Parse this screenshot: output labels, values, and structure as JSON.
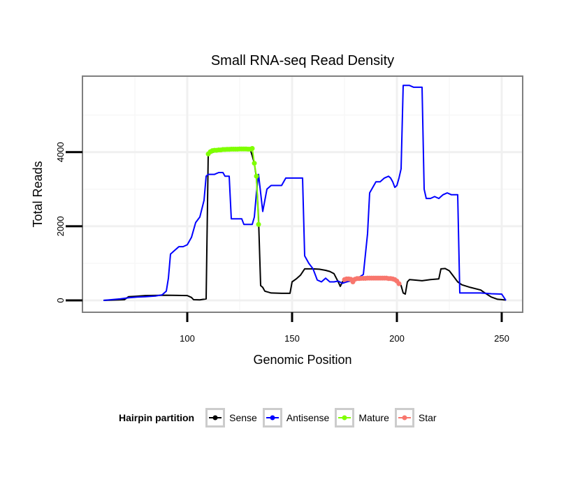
{
  "chart_data": {
    "type": "line",
    "title": "Small RNA-seq Read Density",
    "xlabel": "Genomic Position",
    "ylabel": "Total Reads",
    "xlim": [
      50,
      260
    ],
    "ylim": [
      -320,
      6050
    ],
    "xticks": [
      100,
      150,
      200,
      250
    ],
    "yticks": [
      0,
      2000,
      4000
    ],
    "grid": true,
    "legend": {
      "title": "Hairpin partition",
      "position": "bottom",
      "entries": [
        "Sense",
        "Antisense",
        "Mature",
        "Star"
      ]
    },
    "series": [
      {
        "name": "Sense",
        "color": "#000000",
        "markers": false,
        "points": [
          [
            60,
            0
          ],
          [
            70,
            20
          ],
          [
            72,
            100
          ],
          [
            75,
            110
          ],
          [
            80,
            130
          ],
          [
            90,
            140
          ],
          [
            100,
            130
          ],
          [
            102,
            80
          ],
          [
            103,
            20
          ],
          [
            106,
            15
          ],
          [
            109,
            40
          ],
          [
            110,
            3950
          ],
          [
            115,
            4050
          ],
          [
            120,
            4070
          ],
          [
            125,
            4080
          ],
          [
            128,
            4080
          ],
          [
            130,
            4080
          ],
          [
            131,
            3900
          ],
          [
            132,
            3700
          ],
          [
            133,
            3300
          ],
          [
            134,
            2200
          ],
          [
            135,
            400
          ],
          [
            136,
            350
          ],
          [
            137,
            250
          ],
          [
            140,
            200
          ],
          [
            145,
            190
          ],
          [
            149,
            190
          ],
          [
            150,
            500
          ],
          [
            152,
            580
          ],
          [
            154,
            680
          ],
          [
            156,
            850
          ],
          [
            160,
            850
          ],
          [
            163,
            840
          ],
          [
            166,
            810
          ],
          [
            168,
            780
          ],
          [
            170,
            720
          ],
          [
            172,
            500
          ],
          [
            173,
            380
          ],
          [
            174,
            500
          ],
          [
            175,
            560
          ],
          [
            180,
            580
          ],
          [
            185,
            600
          ],
          [
            190,
            590
          ],
          [
            195,
            580
          ],
          [
            200,
            560
          ],
          [
            202,
            400
          ],
          [
            203,
            200
          ],
          [
            204,
            170
          ],
          [
            205,
            500
          ],
          [
            206,
            560
          ],
          [
            208,
            550
          ],
          [
            212,
            530
          ],
          [
            216,
            560
          ],
          [
            220,
            580
          ],
          [
            221,
            850
          ],
          [
            223,
            860
          ],
          [
            225,
            800
          ],
          [
            227,
            650
          ],
          [
            229,
            500
          ],
          [
            231,
            420
          ],
          [
            235,
            350
          ],
          [
            240,
            280
          ],
          [
            242,
            200
          ],
          [
            245,
            90
          ],
          [
            248,
            30
          ],
          [
            252,
            10
          ]
        ]
      },
      {
        "name": "Antisense",
        "color": "#0000ff",
        "markers": false,
        "points": [
          [
            60,
            0
          ],
          [
            68,
            40
          ],
          [
            72,
            70
          ],
          [
            76,
            90
          ],
          [
            80,
            100
          ],
          [
            85,
            120
          ],
          [
            88,
            150
          ],
          [
            90,
            250
          ],
          [
            91,
            600
          ],
          [
            92,
            1250
          ],
          [
            94,
            1350
          ],
          [
            96,
            1450
          ],
          [
            98,
            1450
          ],
          [
            100,
            1500
          ],
          [
            102,
            1700
          ],
          [
            104,
            2100
          ],
          [
            106,
            2250
          ],
          [
            108,
            2700
          ],
          [
            109,
            3350
          ],
          [
            110,
            3400
          ],
          [
            113,
            3400
          ],
          [
            115,
            3450
          ],
          [
            117,
            3450
          ],
          [
            118,
            3350
          ],
          [
            120,
            3350
          ],
          [
            121,
            2200
          ],
          [
            124,
            2200
          ],
          [
            126,
            2200
          ],
          [
            127,
            2050
          ],
          [
            129,
            2050
          ],
          [
            131,
            2050
          ],
          [
            132,
            2250
          ],
          [
            133,
            2900
          ],
          [
            134,
            3400
          ],
          [
            135,
            2900
          ],
          [
            136,
            2400
          ],
          [
            137,
            2700
          ],
          [
            138,
            3000
          ],
          [
            140,
            3100
          ],
          [
            142,
            3100
          ],
          [
            145,
            3100
          ],
          [
            147,
            3300
          ],
          [
            150,
            3300
          ],
          [
            152,
            3300
          ],
          [
            155,
            3300
          ],
          [
            156,
            1200
          ],
          [
            158,
            1000
          ],
          [
            160,
            850
          ],
          [
            162,
            550
          ],
          [
            164,
            500
          ],
          [
            166,
            600
          ],
          [
            168,
            500
          ],
          [
            170,
            500
          ],
          [
            172,
            520
          ],
          [
            174,
            460
          ],
          [
            176,
            500
          ],
          [
            180,
            550
          ],
          [
            184,
            700
          ],
          [
            186,
            1800
          ],
          [
            187,
            2900
          ],
          [
            190,
            3200
          ],
          [
            192,
            3200
          ],
          [
            194,
            3300
          ],
          [
            196,
            3350
          ],
          [
            197,
            3300
          ],
          [
            198,
            3200
          ],
          [
            199,
            3050
          ],
          [
            200,
            3100
          ],
          [
            201,
            3300
          ],
          [
            202,
            3550
          ],
          [
            203,
            5800
          ],
          [
            206,
            5800
          ],
          [
            208,
            5750
          ],
          [
            212,
            5750
          ],
          [
            213,
            3000
          ],
          [
            214,
            2750
          ],
          [
            216,
            2750
          ],
          [
            218,
            2800
          ],
          [
            220,
            2750
          ],
          [
            222,
            2850
          ],
          [
            224,
            2900
          ],
          [
            226,
            2850
          ],
          [
            229,
            2850
          ],
          [
            230,
            200
          ],
          [
            235,
            200
          ],
          [
            240,
            200
          ],
          [
            245,
            180
          ],
          [
            250,
            170
          ],
          [
            252,
            0
          ]
        ]
      },
      {
        "name": "Mature",
        "color": "#7fff00",
        "markers": true,
        "points": [
          [
            110,
            3950
          ],
          [
            111,
            4010
          ],
          [
            112,
            4040
          ],
          [
            113,
            4050
          ],
          [
            114,
            4050
          ],
          [
            115,
            4060
          ],
          [
            116,
            4060
          ],
          [
            117,
            4070
          ],
          [
            118,
            4070
          ],
          [
            119,
            4075
          ],
          [
            120,
            4075
          ],
          [
            121,
            4080
          ],
          [
            122,
            4080
          ],
          [
            123,
            4080
          ],
          [
            124,
            4080
          ],
          [
            125,
            4085
          ],
          [
            126,
            4085
          ],
          [
            127,
            4085
          ],
          [
            128,
            4085
          ],
          [
            129,
            4080
          ],
          [
            130,
            4080
          ],
          [
            131,
            4100
          ],
          [
            132,
            3700
          ],
          [
            133,
            3350
          ],
          [
            134,
            2050
          ]
        ]
      },
      {
        "name": "Star",
        "color": "#f8766d",
        "markers": true,
        "points": [
          [
            175,
            560
          ],
          [
            176,
            580
          ],
          [
            177,
            580
          ],
          [
            178,
            570
          ],
          [
            179,
            500
          ],
          [
            180,
            570
          ],
          [
            181,
            590
          ],
          [
            182,
            590
          ],
          [
            183,
            595
          ],
          [
            184,
            595
          ],
          [
            185,
            595
          ],
          [
            186,
            600
          ],
          [
            187,
            600
          ],
          [
            188,
            600
          ],
          [
            189,
            600
          ],
          [
            190,
            600
          ],
          [
            191,
            600
          ],
          [
            192,
            600
          ],
          [
            193,
            600
          ],
          [
            194,
            600
          ],
          [
            195,
            600
          ],
          [
            196,
            590
          ],
          [
            197,
            590
          ],
          [
            198,
            580
          ],
          [
            199,
            560
          ],
          [
            200,
            520
          ],
          [
            201,
            450
          ]
        ]
      }
    ]
  }
}
